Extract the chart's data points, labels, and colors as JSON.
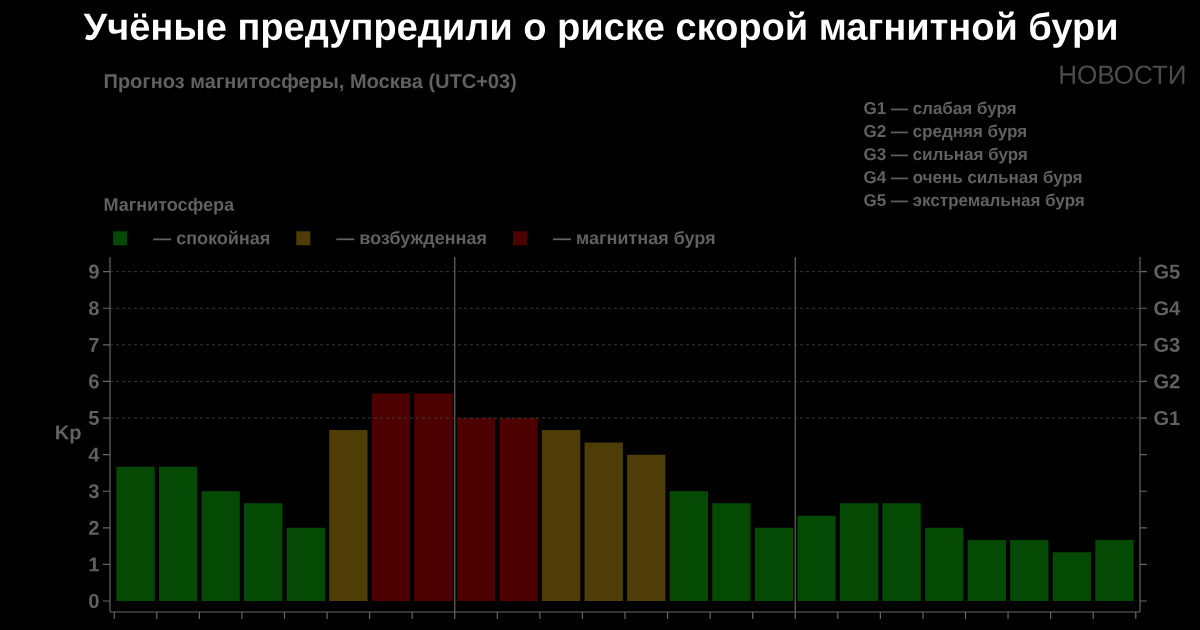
{
  "chart_data": {
    "type": "bar",
    "title": "Учёные предупредили о риске скорой магнитной бури",
    "subtitle": "Прогноз магнитосферы, Москва (UTC+03)",
    "legend_title": "Магнитосфера",
    "ylabel": "Kp",
    "categories": [
      null,
      null,
      null,
      null,
      null,
      null,
      null,
      null,
      null,
      null,
      null,
      null,
      null,
      null,
      null,
      null,
      null,
      null,
      null,
      null,
      null,
      null,
      null,
      null
    ],
    "series": [
      {
        "name": "— спокойная",
        "color": "#044a04",
        "values": [
          3.67,
          3.67,
          3,
          2.67,
          2,
          null,
          null,
          null,
          null,
          null,
          null,
          null,
          null,
          3,
          2.67,
          2,
          2.33,
          2.67,
          2.67,
          2,
          1.67,
          1.67,
          1.33,
          1.67
        ]
      },
      {
        "name": "— возбужденная",
        "color": "#4f3d08",
        "values": [
          null,
          null,
          null,
          null,
          null,
          4.67,
          null,
          null,
          null,
          null,
          4.67,
          4.33,
          4,
          null,
          null,
          null,
          null,
          null,
          null,
          null,
          null,
          null,
          null,
          null
        ]
      },
      {
        "name": "— магнитная буря",
        "color": "#4d0000",
        "values": [
          null,
          null,
          null,
          null,
          null,
          null,
          5.67,
          5.67,
          5,
          5,
          null,
          null,
          null,
          null,
          null,
          null,
          null,
          null,
          null,
          null,
          null,
          null,
          null,
          null
        ]
      }
    ],
    "ylim": [
      -0.3,
      9.4
    ],
    "yticks": [
      0,
      1,
      2,
      3,
      4,
      5,
      6,
      7,
      8,
      9
    ],
    "ref_lines": [
      {
        "axis": "y",
        "value": 5,
        "label": "G1",
        "line_style": "dashed"
      },
      {
        "axis": "y",
        "value": 6,
        "label": "G2",
        "line_style": "dashed"
      },
      {
        "axis": "y",
        "value": 7,
        "label": "G3",
        "line_style": "dashed"
      },
      {
        "axis": "y",
        "value": 8,
        "label": "G4",
        "line_style": "dashed"
      },
      {
        "axis": "y",
        "value": 9,
        "label": "G5",
        "line_style": "dashed"
      }
    ],
    "legend": "top left",
    "annotations": [
      "НОВОСТИ",
      "G1 — слабая буря",
      "G2 — средняя буря",
      "G3 — сильная буря",
      "G4 — очень сильная буря",
      "G5 — экстремальная буря"
    ]
  }
}
